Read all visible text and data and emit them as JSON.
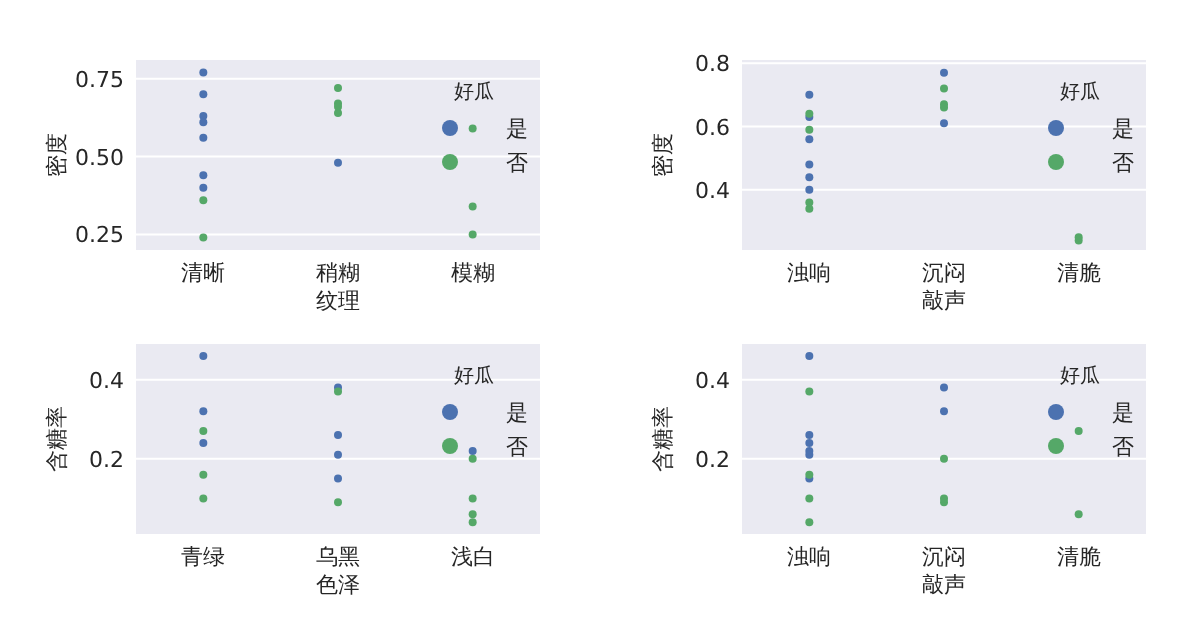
{
  "chart_data": [
    {
      "type": "scatter",
      "categories": [
        "清晰",
        "稍糊",
        "模糊"
      ],
      "xlabel": "纹理",
      "ylabel": "密度",
      "legend_title": "好瓜",
      "ylim": [
        0.2,
        0.81
      ],
      "yticks": [
        0.25,
        {
          "value": 0.5,
          "label": "0.50"
        },
        0.75
      ],
      "grid": "y",
      "legend": "right",
      "marker": "circle",
      "series": [
        {
          "name": "是",
          "color": "#4c72b0",
          "x": [
            "清晰",
            "清晰",
            "清晰",
            "清晰",
            "清晰",
            "清晰",
            "清晰",
            "稍糊"
          ],
          "values": [
            0.7,
            0.77,
            0.63,
            0.61,
            0.56,
            0.4,
            0.44,
            0.48
          ]
        },
        {
          "name": "否",
          "color": "#55a868",
          "x": [
            "清晰",
            "清晰",
            "稍糊",
            "稍糊",
            "稍糊",
            "稍糊",
            "模糊",
            "模糊",
            "模糊"
          ],
          "values": [
            0.24,
            0.36,
            0.67,
            0.64,
            0.66,
            0.72,
            0.25,
            0.34,
            0.59
          ]
        }
      ]
    },
    {
      "type": "scatter",
      "categories": [
        "浊响",
        "沉闷",
        "清脆"
      ],
      "xlabel": "敲声",
      "ylabel": "密度",
      "legend_title": "好瓜",
      "ylim": [
        0.21,
        0.81
      ],
      "yticks": [
        0.4,
        0.6,
        0.8
      ],
      "grid": "y",
      "legend": "right",
      "marker": "circle",
      "series": [
        {
          "name": "是",
          "color": "#4c72b0",
          "x": [
            "浊响",
            "浊响",
            "浊响",
            "浊响",
            "浊响",
            "浊响",
            "沉闷",
            "沉闷"
          ],
          "values": [
            0.7,
            0.63,
            0.56,
            0.4,
            0.48,
            0.44,
            0.77,
            0.61
          ]
        },
        {
          "name": "否",
          "color": "#55a868",
          "x": [
            "浊响",
            "浊响",
            "浊响",
            "浊响",
            "沉闷",
            "沉闷",
            "沉闷",
            "清脆",
            "清脆"
          ],
          "values": [
            0.34,
            0.64,
            0.36,
            0.59,
            0.67,
            0.66,
            0.72,
            0.24,
            0.25
          ]
        }
      ]
    },
    {
      "type": "scatter",
      "categories": [
        "青绿",
        "乌黑",
        "浅白"
      ],
      "xlabel": "色泽",
      "ylabel": "含糖率",
      "legend_title": "好瓜",
      "ylim": [
        0.01,
        0.49
      ],
      "yticks": [
        0.2,
        0.4
      ],
      "grid": "y",
      "legend": "right",
      "marker": "circle",
      "series": [
        {
          "name": "是",
          "color": "#4c72b0",
          "x": [
            "青绿",
            "青绿",
            "青绿",
            "乌黑",
            "乌黑",
            "乌黑",
            "乌黑",
            "浅白"
          ],
          "values": [
            0.46,
            0.32,
            0.24,
            0.38,
            0.26,
            0.15,
            0.21,
            0.22
          ]
        },
        {
          "name": "否",
          "color": "#55a868",
          "x": [
            "青绿",
            "青绿",
            "青绿",
            "乌黑",
            "乌黑",
            "浅白",
            "浅白",
            "浅白",
            "浅白"
          ],
          "values": [
            0.27,
            0.16,
            0.1,
            0.09,
            0.37,
            0.06,
            0.1,
            0.2,
            0.04
          ]
        }
      ]
    },
    {
      "type": "scatter",
      "categories": [
        "浊响",
        "沉闷",
        "清脆"
      ],
      "xlabel": "敲声",
      "ylabel": "含糖率",
      "legend_title": "好瓜",
      "ylim": [
        0.01,
        0.49
      ],
      "yticks": [
        0.2,
        0.4
      ],
      "grid": "y",
      "legend": "right",
      "marker": "circle",
      "series": [
        {
          "name": "是",
          "color": "#4c72b0",
          "x": [
            "浊响",
            "浊响",
            "浊响",
            "浊响",
            "浊响",
            "浊响",
            "沉闷",
            "沉闷"
          ],
          "values": [
            0.46,
            0.26,
            0.22,
            0.24,
            0.15,
            0.21,
            0.38,
            0.32
          ]
        },
        {
          "name": "否",
          "color": "#55a868",
          "x": [
            "浊响",
            "浊响",
            "浊响",
            "浊响",
            "沉闷",
            "沉闷",
            "沉闷",
            "清脆",
            "清脆"
          ],
          "values": [
            0.1,
            0.16,
            0.37,
            0.04,
            0.09,
            0.2,
            0.1,
            0.27,
            0.06
          ]
        }
      ]
    }
  ]
}
